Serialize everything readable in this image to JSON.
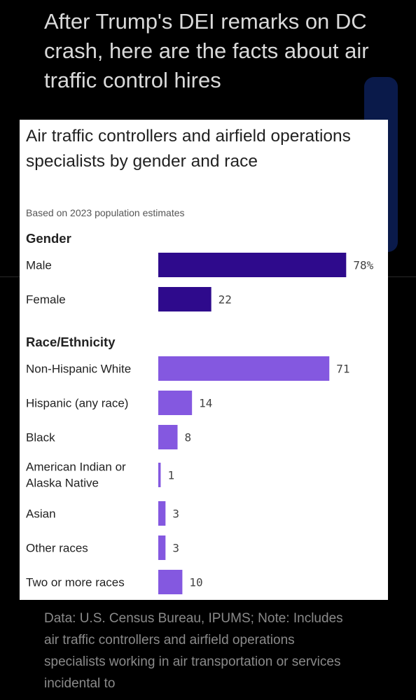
{
  "headline": "After Trump's DEI remarks on DC crash, here are the facts about air traffic control hires",
  "source_note": "Data: U.S. Census Bureau, IPUMS; Note: Includes air traffic controllers and airfield operations specialists working in air transportation or services incidental to",
  "colors": {
    "gender_bar": "#2e0a8c",
    "race_bar": "#8458e0",
    "card_bg": "#ffffff",
    "page_bg": "#000000"
  },
  "chart_data": {
    "type": "bar",
    "orientation": "horizontal",
    "title": "Air traffic controllers and airfield operations specialists by gender and race",
    "subtitle": "Based on 2023 population estimates",
    "xlim": [
      0,
      100
    ],
    "grid": false,
    "groups": [
      {
        "name": "Gender",
        "color": "#2e0a8c",
        "categories": [
          "Male",
          "Female"
        ],
        "values": [
          78,
          22
        ],
        "value_labels": [
          "78%",
          "22"
        ]
      },
      {
        "name": "Race/Ethnicity",
        "color": "#8458e0",
        "categories": [
          "Non-Hispanic White",
          "Hispanic (any race)",
          "Black",
          "American Indian or Alaska Native",
          "Asian",
          "Other races",
          "Two or more races"
        ],
        "values": [
          71,
          14,
          8,
          1,
          3,
          3,
          10
        ],
        "value_labels": [
          "71",
          "14",
          "8",
          "1",
          "3",
          "3",
          "10"
        ]
      }
    ]
  }
}
